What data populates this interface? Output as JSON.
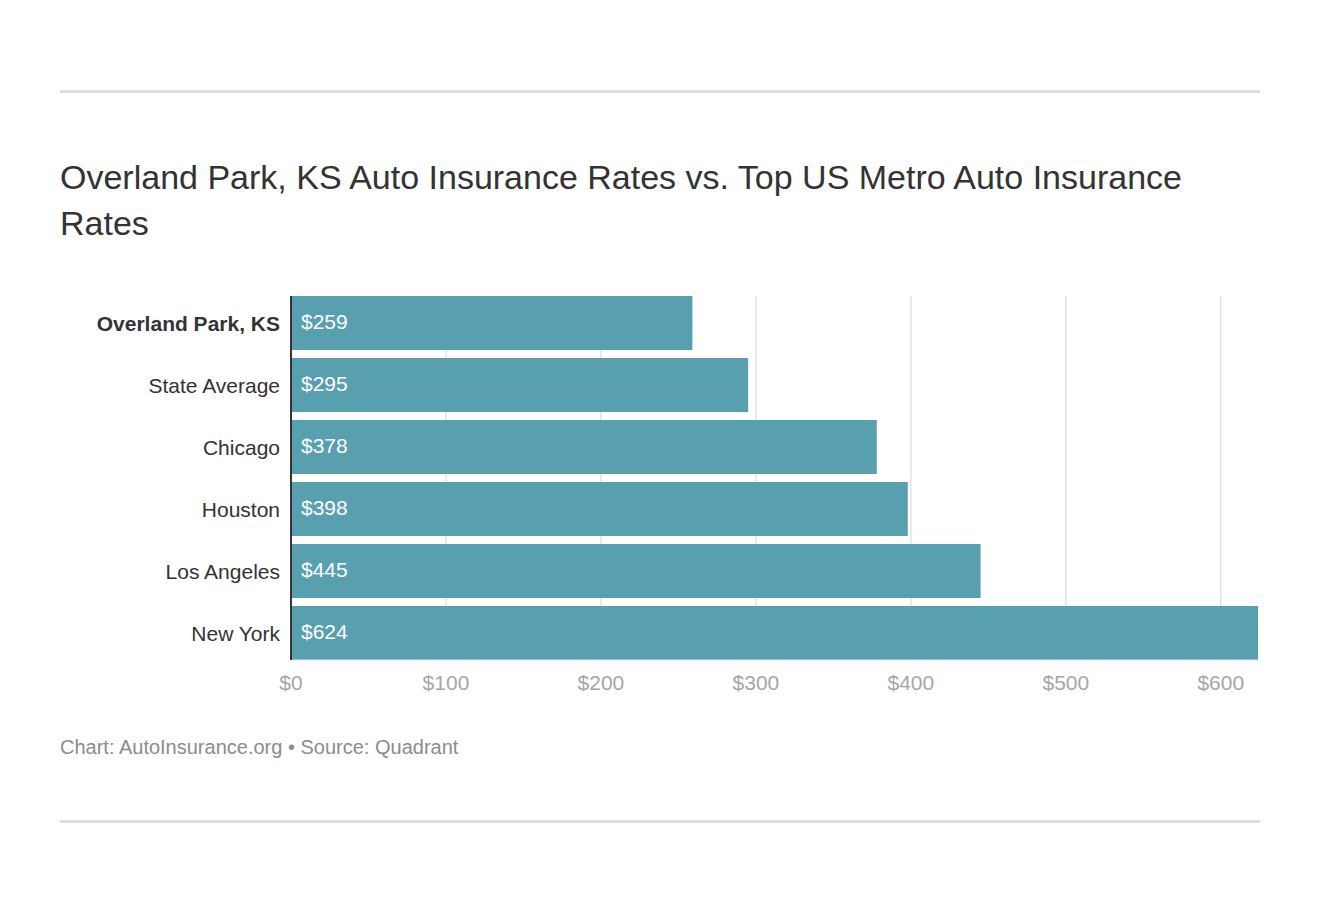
{
  "chart_data": {
    "type": "bar",
    "orientation": "horizontal",
    "title": "Overland Park, KS Auto Insurance Rates vs. Top US Metro Auto Insurance Rates",
    "categories": [
      "Overland Park, KS",
      "State Average",
      "Chicago",
      "Houston",
      "Los Angeles",
      "New York"
    ],
    "values": [
      259,
      295,
      378,
      398,
      445,
      624
    ],
    "value_labels": [
      "$259",
      "$295",
      "$378",
      "$398",
      "$445",
      "$624"
    ],
    "data_labels": true,
    "color": "#58a0af",
    "xlim": [
      0,
      624
    ],
    "xticks": [
      {
        "value": 0,
        "label": "$0"
      },
      {
        "value": 100,
        "label": "$100"
      },
      {
        "value": 200,
        "label": "$200"
      },
      {
        "value": 300,
        "label": "$300"
      },
      {
        "value": 400,
        "label": "$400"
      },
      {
        "value": 500,
        "label": "$500"
      },
      {
        "value": 600,
        "label": "$600"
      }
    ],
    "grid": true,
    "source": "Chart: AutoInsurance.org • Source: Quadrant"
  }
}
